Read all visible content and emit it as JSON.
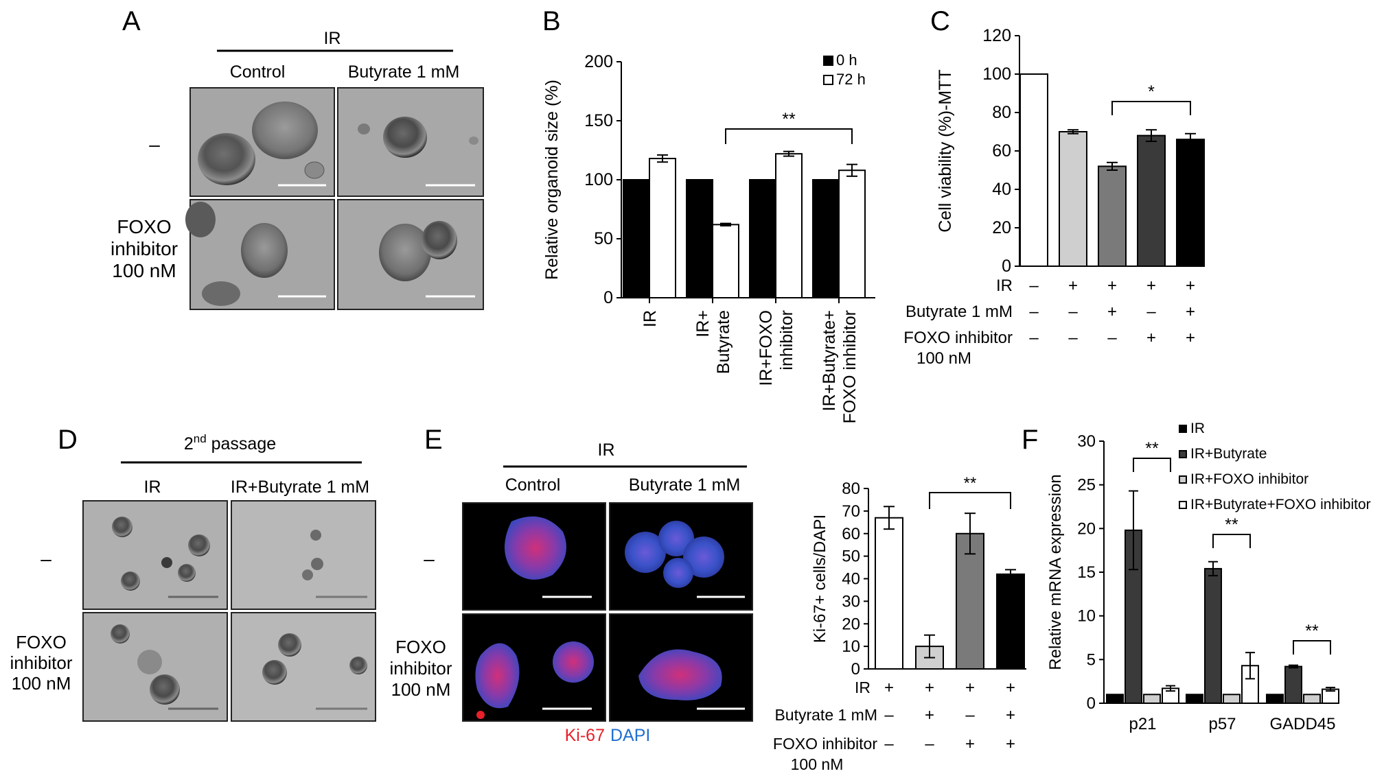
{
  "panels": {
    "A": {
      "letter": "A",
      "group": "IR",
      "columns": [
        "Control",
        "Butyrate 1 mM"
      ],
      "rows": [
        {
          "lines": [
            "–"
          ]
        },
        {
          "lines": [
            "FOXO",
            "inhibitor",
            "100 nM"
          ]
        }
      ]
    },
    "D": {
      "letter": "D",
      "group_base": "2",
      "group_sup": "nd",
      "group_rest": " passage",
      "columns": [
        "IR",
        "IR+Butyrate 1 mM"
      ],
      "rows": [
        {
          "lines": [
            "–"
          ]
        },
        {
          "lines": [
            "FOXO",
            "inhibitor",
            "100 nM"
          ]
        }
      ]
    },
    "E": {
      "letter": "E",
      "group": "IR",
      "columns": [
        "Control",
        "Butyrate 1 mM"
      ],
      "rows": [
        {
          "lines": [
            "–"
          ]
        },
        {
          "lines": [
            "FOXO",
            "inhibitor",
            "100 nM"
          ]
        }
      ],
      "stain_ki67": "Ki-67",
      "stain_dapi": "DAPI"
    }
  },
  "colors": {
    "black": "#000000",
    "dark": "#3a3a3a",
    "mid": "#7a7a7a",
    "light": "#cfcfcf",
    "white": "#ffffff",
    "ki67": "#e8202a",
    "dapi": "#1f6fd1"
  },
  "chart_data": [
    {
      "id": "B",
      "letter": "B",
      "type": "bar",
      "ylabel": "Relative organoid size (%)",
      "ylim": [
        0,
        200
      ],
      "yticks": [
        0,
        50,
        100,
        150,
        200
      ],
      "categories": [
        [
          "IR"
        ],
        [
          "IR+",
          "Butyrate"
        ],
        [
          "IR+FOXO",
          "inhibitor"
        ],
        [
          "IR+Butyrate+",
          "FOXO inhibitor"
        ]
      ],
      "series": [
        {
          "name": "0 h",
          "color": "#000000",
          "values": [
            100,
            100,
            100,
            100
          ],
          "errors": [
            0,
            0,
            0,
            0
          ]
        },
        {
          "name": "72 h",
          "color": "#ffffff",
          "values": [
            118,
            62,
            122,
            108
          ],
          "errors": [
            3,
            1,
            2,
            5
          ]
        }
      ],
      "legend": "top-right",
      "significance": [
        {
          "label": "**",
          "from_category": 1,
          "to_category": 3
        }
      ]
    },
    {
      "id": "C",
      "letter": "C",
      "type": "bar",
      "ylabel": "Cell viability (%)-MTT",
      "ylim": [
        0,
        120
      ],
      "yticks": [
        0,
        20,
        40,
        60,
        80,
        100,
        120
      ],
      "values": [
        100,
        70,
        52,
        68,
        66
      ],
      "errors": [
        0,
        1,
        2,
        3,
        3
      ],
      "colors": [
        "#ffffff",
        "#cfcfcf",
        "#7a7a7a",
        "#3a3a3a",
        "#000000"
      ],
      "treatments": [
        {
          "name": [
            "IR"
          ],
          "marks": [
            "–",
            "+",
            "+",
            "+",
            "+"
          ]
        },
        {
          "name": [
            "Butyrate 1 mM"
          ],
          "marks": [
            "–",
            "–",
            "+",
            "–",
            "+"
          ]
        },
        {
          "name": [
            "FOXO inhibitor",
            "100 nM"
          ],
          "marks": [
            "–",
            "–",
            "–",
            "+",
            "+"
          ]
        }
      ],
      "significance": [
        {
          "label": "*",
          "from_index": 2,
          "to_index": 4
        }
      ]
    },
    {
      "id": "E",
      "type": "bar",
      "ylabel": "Ki-67+ cells/DAPI",
      "ylim": [
        0,
        80
      ],
      "yticks": [
        0,
        10,
        20,
        30,
        40,
        50,
        60,
        70,
        80
      ],
      "values": [
        67,
        10,
        60,
        42
      ],
      "errors": [
        5,
        5,
        9,
        2
      ],
      "colors": [
        "#ffffff",
        "#cfcfcf",
        "#7a7a7a",
        "#000000"
      ],
      "treatments": [
        {
          "name": [
            "IR"
          ],
          "marks": [
            "+",
            "+",
            "+",
            "+"
          ]
        },
        {
          "name": [
            "Butyrate 1 mM"
          ],
          "marks": [
            "–",
            "+",
            "–",
            "+"
          ]
        },
        {
          "name": [
            "FOXO inhibitor",
            "100 nM"
          ],
          "marks": [
            "–",
            "–",
            "+",
            "+"
          ]
        }
      ],
      "significance": [
        {
          "label": "**",
          "from_index": 1,
          "to_index": 3
        }
      ]
    },
    {
      "id": "F",
      "letter": "F",
      "type": "bar",
      "ylabel": "Relative mRNA expression",
      "ylim": [
        0,
        30
      ],
      "yticks": [
        0,
        5,
        10,
        15,
        20,
        25,
        30
      ],
      "categories": [
        "p21",
        "p57",
        "GADD45"
      ],
      "series": [
        {
          "name": "IR",
          "color": "#000000",
          "values": [
            1,
            1,
            1
          ],
          "errors": [
            0,
            0,
            0
          ]
        },
        {
          "name": "IR+Butyrate",
          "color": "#3a3a3a",
          "values": [
            19.8,
            15.4,
            4.2
          ],
          "errors": [
            4.5,
            0.8,
            0.15
          ]
        },
        {
          "name": "IR+FOXO inhibitor",
          "color": "#cfcfcf",
          "values": [
            1,
            1,
            1
          ],
          "errors": [
            0,
            0,
            0
          ]
        },
        {
          "name": "IR+Butyrate+FOXO inhibitor",
          "color": "#ffffff",
          "values": [
            1.7,
            4.3,
            1.6
          ],
          "errors": [
            0.3,
            1.5,
            0.2
          ]
        }
      ],
      "legend": "top-right",
      "significance": [
        {
          "label": "**",
          "category": 0,
          "from_series": 1,
          "to_series": 3
        },
        {
          "label": "**",
          "category": 1,
          "from_series": 1,
          "to_series": 3
        },
        {
          "label": "**",
          "category": 2,
          "from_series": 1,
          "to_series": 3
        }
      ]
    }
  ]
}
